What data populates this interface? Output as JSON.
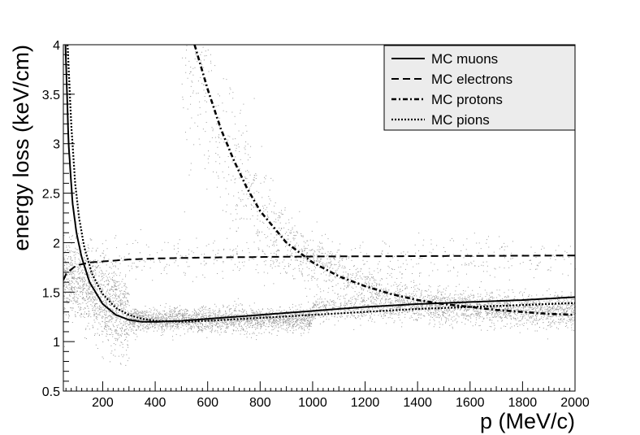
{
  "chart_data": {
    "type": "line",
    "title": "",
    "xlabel": "p (MeV/c)",
    "ylabel": "energy loss (keV/cm)",
    "xlim": [
      50,
      2000
    ],
    "ylim": [
      0.5,
      4
    ],
    "x_ticks": [
      200,
      400,
      600,
      800,
      1000,
      1200,
      1400,
      1600,
      1800,
      2000
    ],
    "y_ticks": [
      0.5,
      1,
      1.5,
      2,
      2.5,
      3,
      3.5,
      4
    ],
    "y_tick_labels": [
      "0.5",
      "1",
      "1.5",
      "2",
      "2.5",
      "3",
      "3.5",
      "4"
    ],
    "grid": false,
    "legend_position": "top-right",
    "series": [
      {
        "name": "MC muons",
        "style": "solid",
        "x": [
          58,
          70,
          85,
          100,
          120,
          150,
          200,
          250,
          300,
          350,
          400,
          500,
          600,
          800,
          1000,
          1200,
          1400,
          1600,
          1800,
          2000
        ],
        "y": [
          4.0,
          3.0,
          2.4,
          2.1,
          1.85,
          1.6,
          1.38,
          1.27,
          1.22,
          1.2,
          1.2,
          1.21,
          1.23,
          1.27,
          1.31,
          1.35,
          1.38,
          1.4,
          1.42,
          1.45
        ]
      },
      {
        "name": "MC electrons",
        "style": "dashed",
        "x": [
          50,
          60,
          80,
          100,
          150,
          200,
          300,
          400,
          600,
          800,
          1000,
          1200,
          1500,
          2000
        ],
        "y": [
          1.62,
          1.68,
          1.73,
          1.77,
          1.8,
          1.81,
          1.83,
          1.84,
          1.85,
          1.855,
          1.86,
          1.862,
          1.865,
          1.87
        ]
      },
      {
        "name": "MC protons",
        "style": "dashdot",
        "x": [
          550,
          600,
          650,
          700,
          750,
          800,
          900,
          1000,
          1100,
          1200,
          1300,
          1400,
          1500,
          1600,
          1700,
          1800,
          1900,
          2000
        ],
        "y": [
          4.0,
          3.55,
          3.15,
          2.83,
          2.55,
          2.32,
          2.0,
          1.8,
          1.66,
          1.56,
          1.48,
          1.42,
          1.38,
          1.35,
          1.32,
          1.3,
          1.28,
          1.27
        ]
      },
      {
        "name": "MC pions",
        "style": "dotted",
        "x": [
          66,
          80,
          95,
          110,
          130,
          160,
          200,
          250,
          300,
          350,
          400,
          500,
          600,
          800,
          1000,
          1200,
          1400,
          1600,
          1800,
          2000
        ],
        "y": [
          4.0,
          3.2,
          2.6,
          2.25,
          1.95,
          1.68,
          1.48,
          1.34,
          1.27,
          1.23,
          1.21,
          1.2,
          1.21,
          1.24,
          1.27,
          1.3,
          1.33,
          1.35,
          1.37,
          1.39
        ]
      }
    ],
    "scatter_clusters": [
      {
        "name": "low-p band",
        "x_range": [
          50,
          300
        ],
        "y_center": 1.5,
        "y_spread": 0.2,
        "count": 1200
      },
      {
        "name": "minimum-ionizing band",
        "x_range": [
          300,
          1000
        ],
        "y_center": 1.22,
        "y_spread": 0.06,
        "count": 2000
      },
      {
        "name": "high-p band",
        "x_range": [
          1000,
          2000
        ],
        "y_center": 1.34,
        "y_spread": 0.07,
        "count": 1500
      },
      {
        "name": "electron band",
        "x_range": [
          50,
          2000
        ],
        "y_center": 1.85,
        "y_spread": 0.1,
        "count": 500
      },
      {
        "name": "proton band",
        "x_range": [
          500,
          2000
        ],
        "follows_series": "MC protons",
        "y_spread": 0.35,
        "count": 1800
      }
    ],
    "colors": {
      "points": "#9a9a9a",
      "lines": "#000000",
      "legend_bg": "#ececec"
    }
  }
}
